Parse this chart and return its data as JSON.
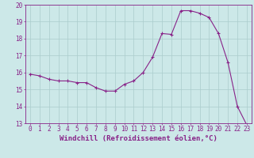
{
  "x": [
    0,
    1,
    2,
    3,
    4,
    5,
    6,
    7,
    8,
    9,
    10,
    11,
    12,
    13,
    14,
    15,
    16,
    17,
    18,
    19,
    20,
    21,
    22,
    23
  ],
  "y": [
    15.9,
    15.8,
    15.6,
    15.5,
    15.5,
    15.4,
    15.4,
    15.1,
    14.9,
    14.9,
    15.3,
    15.5,
    16.0,
    16.9,
    18.3,
    18.25,
    19.65,
    19.65,
    19.5,
    19.25,
    18.3,
    16.6,
    14.0,
    12.9
  ],
  "line_color": "#882288",
  "marker": "+",
  "marker_size": 3,
  "bg_color": "#cce8e8",
  "grid_color": "#aacccc",
  "xlabel": "Windchill (Refroidissement éolien,°C)",
  "ylim": [
    13,
    20
  ],
  "xlim": [
    -0.5,
    23.5
  ],
  "yticks": [
    13,
    14,
    15,
    16,
    17,
    18,
    19,
    20
  ],
  "xticks": [
    0,
    1,
    2,
    3,
    4,
    5,
    6,
    7,
    8,
    9,
    10,
    11,
    12,
    13,
    14,
    15,
    16,
    17,
    18,
    19,
    20,
    21,
    22,
    23
  ],
  "tick_fontsize": 5.5,
  "xlabel_fontsize": 6.5,
  "spine_color": "#882288"
}
